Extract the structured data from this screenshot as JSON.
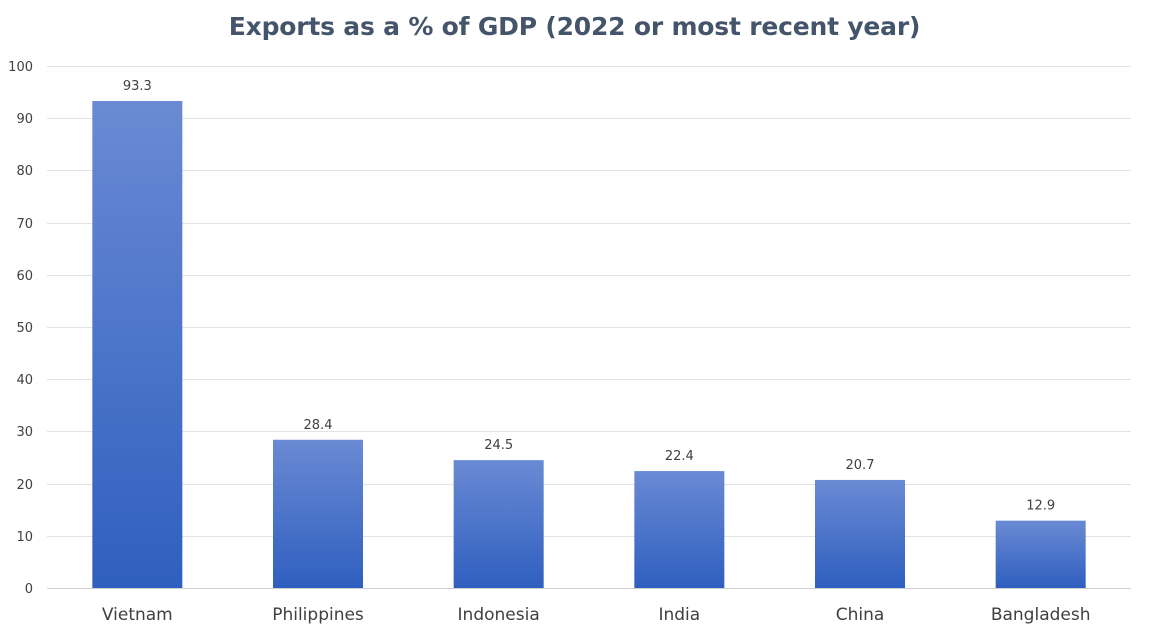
{
  "chart_data": {
    "type": "bar",
    "title": "Exports as a % of GDP (2022 or most recent year)",
    "xlabel": "",
    "ylabel": "",
    "categories": [
      "Vietnam",
      "Philippines",
      "Indonesia",
      "India",
      "China",
      "Bangladesh"
    ],
    "values": [
      93.3,
      28.4,
      24.5,
      22.4,
      20.7,
      12.9
    ],
    "data_labels": [
      "93.3",
      "28.4",
      "24.5",
      "22.4",
      "20.7",
      "12.9"
    ],
    "ylim": [
      0,
      100
    ],
    "yticks": [
      0,
      10,
      20,
      30,
      40,
      50,
      60,
      70,
      80,
      90,
      100
    ],
    "ytick_labels": [
      "0",
      "10",
      "20",
      "30",
      "40",
      "50",
      "60",
      "70",
      "80",
      "90",
      "100"
    ],
    "grid": true,
    "legend": "none",
    "colors": {
      "bar_top": "#6a8ad4",
      "bar_bottom": "#2f5fbf",
      "title": "#44546a",
      "text": "#404040",
      "grid": "#e3e3e3"
    }
  }
}
